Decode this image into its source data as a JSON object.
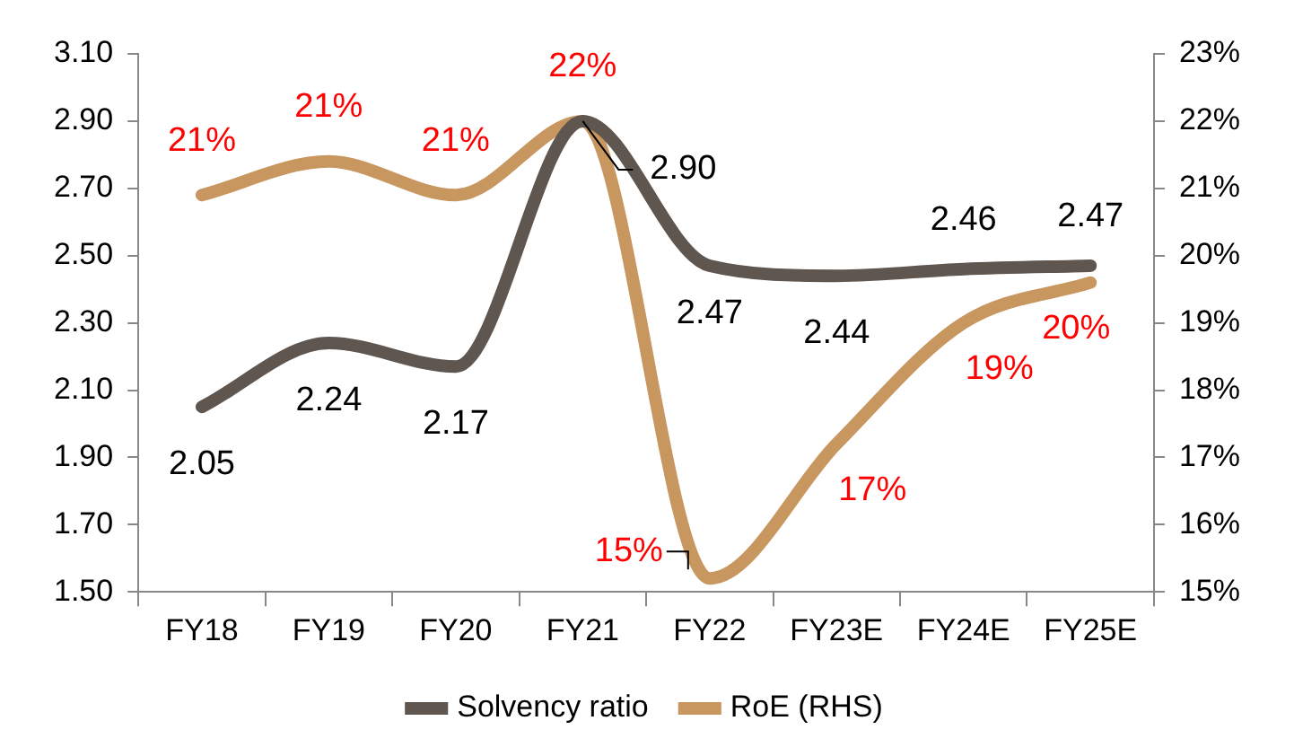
{
  "chart_data": {
    "type": "line",
    "categories": [
      "FY18",
      "FY19",
      "FY20",
      "FY21",
      "FY22",
      "FY23E",
      "FY24E",
      "FY25E"
    ],
    "series": [
      {
        "name": "Solvency ratio",
        "color": "#5f5650",
        "values": [
          2.05,
          2.24,
          2.17,
          2.9,
          2.47,
          2.44,
          2.46,
          2.47
        ],
        "value_labels": [
          "2.05",
          "2.24",
          "2.17",
          "2.90",
          "2.47",
          "2.44",
          "2.46",
          "2.47"
        ]
      },
      {
        "name": "RoE (RHS)",
        "color": "#c8965f",
        "axis": "y2",
        "values": [
          20.9,
          21.4,
          20.9,
          22.0,
          15.2,
          17.2,
          19.0,
          19.6
        ],
        "value_labels": [
          "21%",
          "21%",
          "21%",
          "22%",
          "15%",
          "17%",
          "19%",
          "20%"
        ]
      }
    ],
    "ylim": [
      1.5,
      3.1
    ],
    "yticks": [
      {
        "value": 1.5,
        "label": "1.50"
      },
      {
        "value": 1.7,
        "label": "1.70"
      },
      {
        "value": 1.9,
        "label": "1.90"
      },
      {
        "value": 2.1,
        "label": "2.10"
      },
      {
        "value": 2.3,
        "label": "2.30"
      },
      {
        "value": 2.5,
        "label": "2.50"
      },
      {
        "value": 2.7,
        "label": "2.70"
      },
      {
        "value": 2.9,
        "label": "2.90"
      },
      {
        "value": 3.1,
        "label": "3.10"
      }
    ],
    "y2lim": [
      15,
      23
    ],
    "y2ticks": [
      {
        "value": 15,
        "label": "15%"
      },
      {
        "value": 16,
        "label": "16%"
      },
      {
        "value": 17,
        "label": "17%"
      },
      {
        "value": 18,
        "label": "18%"
      },
      {
        "value": 19,
        "label": "19%"
      },
      {
        "value": 20,
        "label": "20%"
      },
      {
        "value": 21,
        "label": "21%"
      },
      {
        "value": 22,
        "label": "22%"
      },
      {
        "value": 23,
        "label": "23%"
      }
    ],
    "grid": false,
    "legend": "bottom",
    "marker": "none",
    "line_style": "solid"
  }
}
